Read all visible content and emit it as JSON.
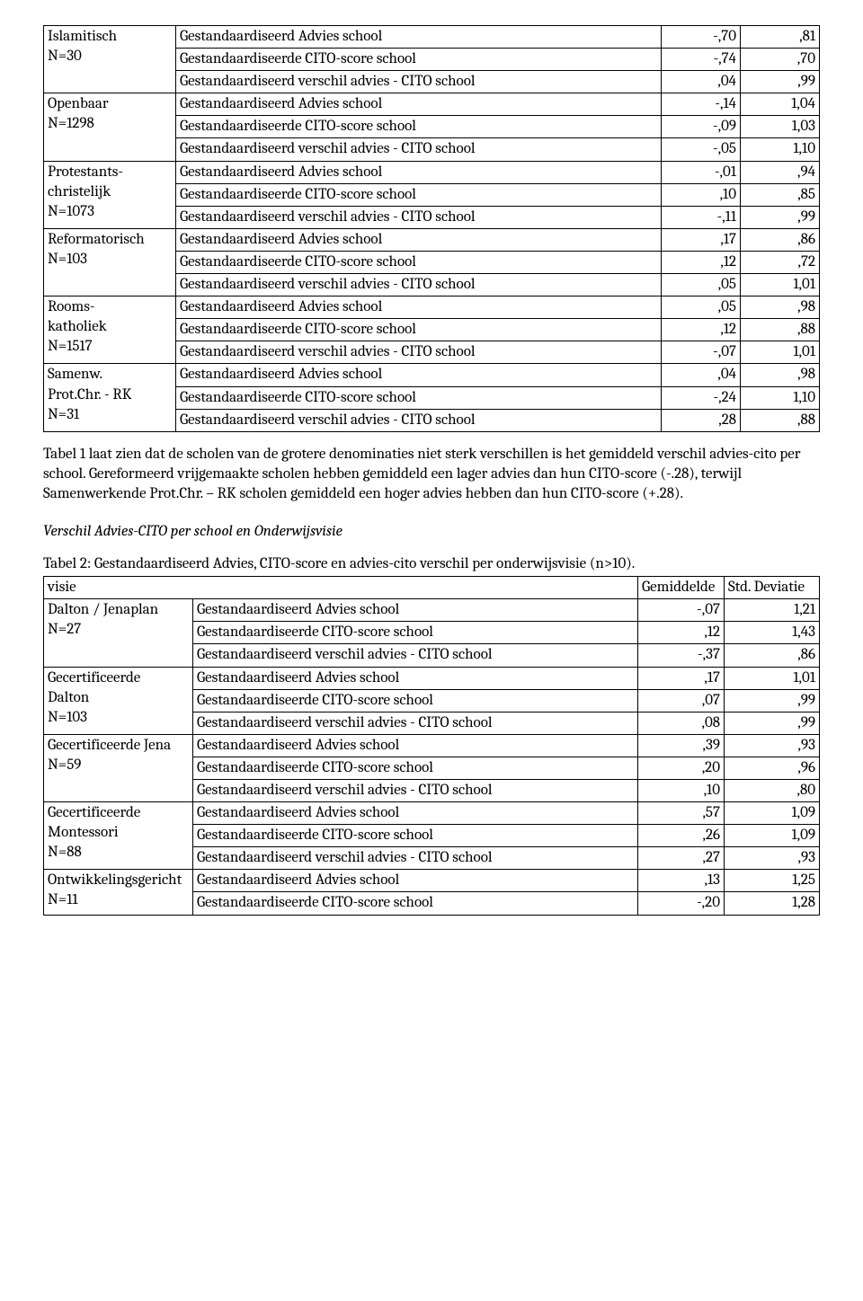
{
  "table1": {
    "col_widths": {
      "group": 147,
      "metric": 0,
      "v1": 88,
      "v2": 88
    },
    "groups": [
      {
        "label_lines": [
          "Islamitisch",
          "N=30"
        ],
        "rows": [
          {
            "metric": "Gestandaardiseerd Advies school",
            "v1": "-,70",
            "v2": ",81"
          },
          {
            "metric": "Gestandaardiseerde CITO-score school",
            "v1": "-,74",
            "v2": ",70"
          },
          {
            "metric": "Gestandaardiseerd verschil advies - CITO school",
            "v1": ",04",
            "v2": ",99"
          }
        ]
      },
      {
        "label_lines": [
          "Openbaar",
          "N=1298"
        ],
        "rows": [
          {
            "metric": "Gestandaardiseerd Advies school",
            "v1": "-,14",
            "v2": "1,04"
          },
          {
            "metric": "Gestandaardiseerde CITO-score school",
            "v1": "-,09",
            "v2": "1,03"
          },
          {
            "metric": "Gestandaardiseerd verschil advies - CITO school",
            "v1": "-,05",
            "v2": "1,10"
          }
        ]
      },
      {
        "label_lines": [
          "Protestants-",
          "christelijk",
          "N=1073"
        ],
        "rows": [
          {
            "metric": "Gestandaardiseerd Advies school",
            "v1": "-,01",
            "v2": ",94"
          },
          {
            "metric": "Gestandaardiseerde CITO-score school",
            "v1": ",10",
            "v2": ",85"
          },
          {
            "metric": "Gestandaardiseerd verschil advies - CITO school",
            "v1": "-,11",
            "v2": ",99"
          }
        ]
      },
      {
        "label_lines": [
          "Reformatorisch",
          "N=103"
        ],
        "rows": [
          {
            "metric": "Gestandaardiseerd Advies school",
            "v1": ",17",
            "v2": ",86"
          },
          {
            "metric": "Gestandaardiseerde CITO-score school",
            "v1": ",12",
            "v2": ",72"
          },
          {
            "metric": "Gestandaardiseerd verschil advies - CITO school",
            "v1": ",05",
            "v2": "1,01"
          }
        ]
      },
      {
        "label_lines": [
          "Rooms-",
          "katholiek",
          "N=1517"
        ],
        "rows": [
          {
            "metric": "Gestandaardiseerd Advies school",
            "v1": ",05",
            "v2": ",98"
          },
          {
            "metric": "Gestandaardiseerde CITO-score school",
            "v1": ",12",
            "v2": ",88"
          },
          {
            "metric": "Gestandaardiseerd verschil advies - CITO school",
            "v1": "-,07",
            "v2": "1,01"
          }
        ]
      },
      {
        "label_lines": [
          "Samenw.",
          "Prot.Chr. - RK",
          "N=31"
        ],
        "rows": [
          {
            "metric": "Gestandaardiseerd Advies school",
            "v1": ",04",
            "v2": ",98"
          },
          {
            "metric": "Gestandaardiseerde CITO-score school",
            "v1": "-,24",
            "v2": "1,10"
          },
          {
            "metric": "Gestandaardiseerd verschil advies - CITO school",
            "v1": ",28",
            "v2": ",88"
          }
        ]
      }
    ]
  },
  "para1": "Tabel 1 laat zien dat de scholen van de grotere denominaties niet sterk verschillen is het gemiddeld verschil advies-cito per school. Gereformeerd vrijgemaakte scholen hebben gemiddeld een lager advies dan hun CITO-score (-.28), terwijl Samenwerkende Prot.Chr. – RK scholen gemiddeld een hoger advies hebben dan hun CITO-score (+.28).",
  "section_title": "Verschil Advies-CITO per school en Onderwijsvisie",
  "table2_caption": "Tabel 2: Gestandaardiseerd Advies, CITO-score en advies-cito verschil per onderwijsvisie (n>10).",
  "table2": {
    "header": {
      "c0": "visie",
      "c2": "Gemiddelde",
      "c3": "Std. Deviatie"
    },
    "groups": [
      {
        "label_lines": [
          "Dalton / Jenaplan",
          "N=27"
        ],
        "rows": [
          {
            "metric": "Gestandaardiseerd Advies school",
            "v1": "-,07",
            "v2": "1,21"
          },
          {
            "metric": "Gestandaardiseerde CITO-score school",
            "v1": ",12",
            "v2": "1,43"
          },
          {
            "metric": "Gestandaardiseerd verschil advies - CITO school",
            "v1": "-,37",
            "v2": ",86"
          }
        ]
      },
      {
        "label_lines": [
          "Gecertificeerde",
          "Dalton",
          "N=103"
        ],
        "rows": [
          {
            "metric": "Gestandaardiseerd Advies school",
            "v1": ",17",
            "v2": "1,01"
          },
          {
            "metric": "Gestandaardiseerde CITO-score school",
            "v1": ",07",
            "v2": ",99"
          },
          {
            "metric": "Gestandaardiseerd verschil advies - CITO school",
            "v1": ",08",
            "v2": ",99"
          }
        ]
      },
      {
        "label_lines": [
          "Gecertificeerde Jena",
          "N=59"
        ],
        "rows": [
          {
            "metric": "Gestandaardiseerd Advies school",
            "v1": ",39",
            "v2": ",93"
          },
          {
            "metric": "Gestandaardiseerde CITO-score school",
            "v1": ",20",
            "v2": ",96"
          },
          {
            "metric": "Gestandaardiseerd verschil advies - CITO school",
            "v1": ",10",
            "v2": ",80"
          }
        ]
      },
      {
        "label_lines": [
          "Gecertificeerde",
          "Montessori",
          "N=88"
        ],
        "rows": [
          {
            "metric": "Gestandaardiseerd Advies school",
            "v1": ",57",
            "v2": "1,09"
          },
          {
            "metric": "Gestandaardiseerde CITO-score school",
            "v1": ",26",
            "v2": "1,09"
          },
          {
            "metric": "Gestandaardiseerd verschil advies - CITO school",
            "v1": ",27",
            "v2": ",93"
          }
        ]
      },
      {
        "label_lines": [
          "Ontwikkelingsgericht",
          "N=11"
        ],
        "partial": true,
        "rows": [
          {
            "metric": "Gestandaardiseerd Advies school",
            "v1": ",13",
            "v2": "1,25"
          },
          {
            "metric": "Gestandaardiseerde CITO-score school",
            "v1": "-,20",
            "v2": "1,28"
          }
        ]
      }
    ]
  }
}
